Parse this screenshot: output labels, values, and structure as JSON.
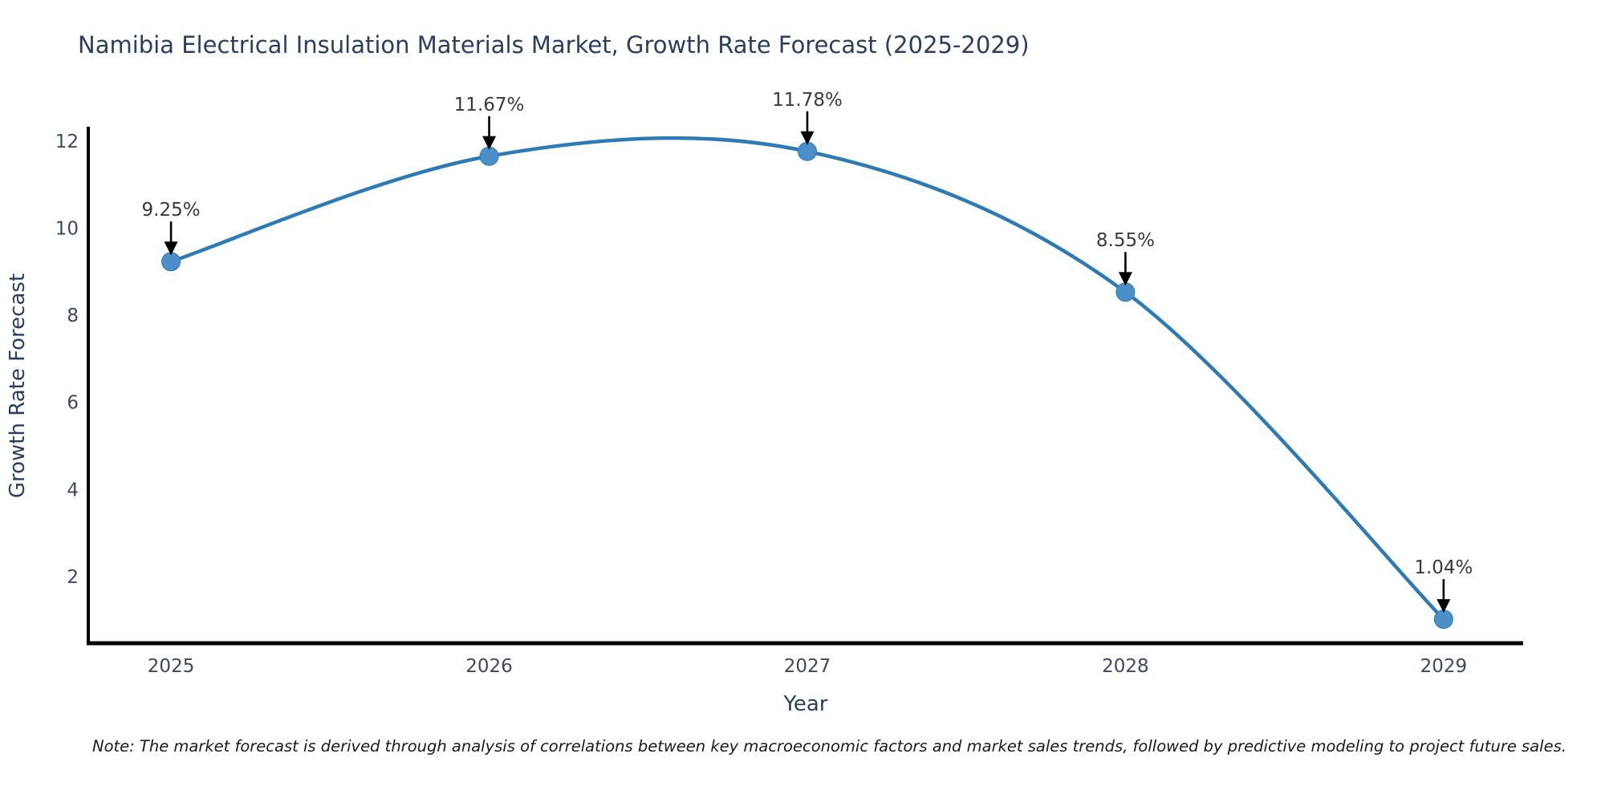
{
  "chart_data": {
    "type": "line",
    "title": "Namibia Electrical Insulation Materials Market, Growth Rate Forecast (2025-2029)",
    "xlabel": "Year",
    "ylabel": "Growth Rate Forecast",
    "categories": [
      "2025",
      "2026",
      "2027",
      "2028",
      "2029"
    ],
    "x": [
      2025,
      2026,
      2027,
      2028,
      2029
    ],
    "values": [
      9.25,
      11.67,
      11.78,
      8.55,
      1.04
    ],
    "point_labels": [
      "9.25%",
      "11.67%",
      "11.78%",
      "8.55%",
      "1.04%"
    ],
    "yticks": [
      2,
      4,
      6,
      8,
      10,
      12
    ],
    "xlim": [
      2024.74,
      2029.25
    ],
    "ylim": [
      0.49,
      12.31
    ],
    "line_shape": "spline",
    "grid": false,
    "legend": "none",
    "colors": {
      "line": "#2e7ab5",
      "marker": "#4a8fc7",
      "marker_edge": "#2e7ab5",
      "arrow": "#000000",
      "axis": "#000000",
      "title_text": "#2a3f5f",
      "tick_text": "#3c4961",
      "annotation_text": "#3a3a3a"
    },
    "note": "Note: The market forecast is derived through analysis of correlations between key macroeconomic factors and market sales trends, followed by predictive modeling to project future sales."
  }
}
